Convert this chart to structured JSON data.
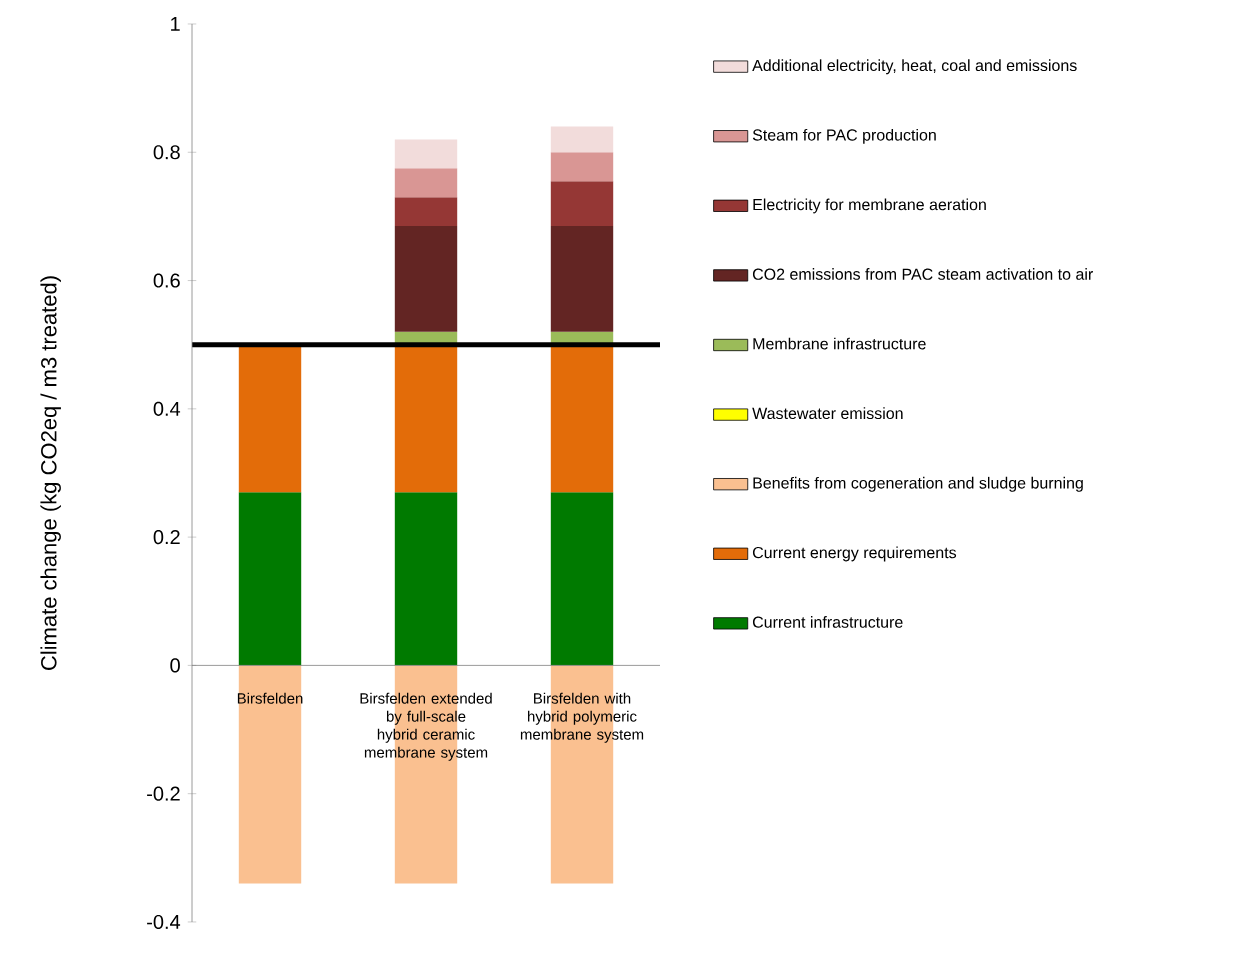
{
  "chart_data": {
    "type": "bar",
    "stacked": true,
    "ylabel": "Climate change (kg CO2eq / m3 treated)",
    "categories": [
      "Birsfelden",
      "Birsfelden extended by full-scale hybrid ceramic membrane system",
      "Birsfelden with hybrid polymeric membrane system"
    ],
    "series": [
      {
        "name": "Current infrastructure",
        "color": "#007a00",
        "values": [
          0.27,
          0.27,
          0.27
        ]
      },
      {
        "name": "Current energy requirements",
        "color": "#e36c09",
        "values": [
          0.23,
          0.23,
          0.23
        ]
      },
      {
        "name": "Benefits from cogeneration and sludge burning",
        "color": "#fac090",
        "values": [
          -0.34,
          -0.34,
          -0.34
        ]
      },
      {
        "name": "Wastewater emission",
        "color": "#ffff00",
        "values": [
          0,
          0,
          0
        ]
      },
      {
        "name": "Membrane infrastructure",
        "color": "#9bbb59",
        "values": [
          0,
          0.02,
          0.02
        ]
      },
      {
        "name": "CO2 emissions from PAC steam activation to air",
        "color": "#632523",
        "values": [
          0,
          0.165,
          0.165
        ]
      },
      {
        "name": "Electricity for membrane aeration",
        "color": "#953735",
        "values": [
          0,
          0.045,
          0.07
        ]
      },
      {
        "name": "Steam for PAC production",
        "color": "#d99694",
        "values": [
          0,
          0.045,
          0.045
        ]
      },
      {
        "name": "Additional electricity, heat, coal and emissions",
        "color": "#f2dcdb",
        "values": [
          0,
          0.045,
          0.04
        ]
      }
    ],
    "ylim": [
      -0.4,
      1
    ],
    "yticks": [
      -0.4,
      -0.2,
      0,
      0.2,
      0.4,
      0.6,
      0.8,
      1
    ],
    "ref_lines": [
      {
        "axis": "y",
        "value": 0.5,
        "color": "#000000"
      }
    ],
    "legend": "right",
    "grid": false
  }
}
